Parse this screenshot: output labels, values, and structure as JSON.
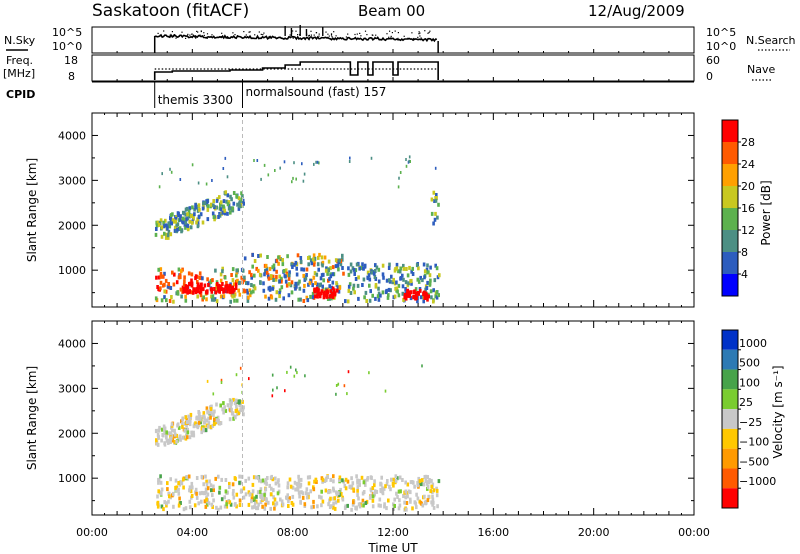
{
  "header": {
    "site": "Saskatoon (fitACF)",
    "beam": "Beam 00",
    "date": "12/Aug/2009"
  },
  "ticks_hours": [
    0,
    4,
    8,
    12,
    16,
    20,
    24
  ],
  "tick_labels": [
    "00:00",
    "04:00",
    "08:00",
    "12:00",
    "16:00",
    "20:00",
    "00:00"
  ],
  "xlabel": "Time UT",
  "noise_panel": {
    "left_label": "N.Sky",
    "right_label": "N.Search",
    "left_ticks": [
      "10^5",
      "10^0"
    ],
    "right_ticks": [
      "10^5",
      "10^0"
    ]
  },
  "freq_panel": {
    "left_label_1": "Freq.",
    "left_label_2": "[MHz]",
    "right_label": "Nave",
    "left_ticks": [
      "18",
      "8"
    ],
    "right_ticks": [
      "60",
      "0"
    ]
  },
  "cpid": {
    "label": "CPID",
    "segments": [
      {
        "start_h": 2.5,
        "name": "themis 3300"
      },
      {
        "start_h": 6.0,
        "name": "normalsound (fast) 157"
      }
    ]
  },
  "range_panel": {
    "ylabel": "Slant Range [km]",
    "yticks": [
      1000,
      2000,
      3000,
      4000
    ],
    "ylim": [
      180,
      4500
    ]
  },
  "power_colorbar": {
    "label": "Power [dB]",
    "ticks": [
      "4",
      "8",
      "12",
      "16",
      "20",
      "24",
      "28"
    ],
    "colors": [
      "#0000ff",
      "#2d5dbe",
      "#4c8f84",
      "#5cb14e",
      "#c8c820",
      "#ffa000",
      "#ff5a00",
      "#ff0000"
    ]
  },
  "velocity_colorbar": {
    "label": "Velocity [m s⁻¹]",
    "ticks": [
      "1000",
      "500",
      "100",
      "25",
      "−25",
      "−100",
      "−500",
      "−1000"
    ],
    "colors": [
      "#0032c8",
      "#2d7ab4",
      "#47a34a",
      "#7acc30",
      "#c8c8c8",
      "#ffc800",
      "#ff9a00",
      "#ff5a00",
      "#ff0000"
    ]
  },
  "chart_data": {
    "type": "heatmap",
    "title": "Saskatoon (fitACF) Beam 00 12/Aug/2009",
    "xlabel": "Time UT",
    "ylabel": "Slant Range [km]",
    "xlim_hours": [
      0,
      24
    ],
    "ylim_km": [
      180,
      4500
    ],
    "power_scatter_regions": [
      {
        "t0": 2.5,
        "t1": 6.0,
        "r0": 250,
        "r1": 1000,
        "level": "high (20-30 dB)"
      },
      {
        "t0": 2.5,
        "t1": 6.0,
        "r0": 1650,
        "r1": 2700,
        "level": "moderate (8-20 dB)"
      },
      {
        "t0": 6.0,
        "t1": 10.0,
        "r0": 250,
        "r1": 1300,
        "level": "moderate-high"
      },
      {
        "t0": 10.0,
        "t1": 13.8,
        "r0": 250,
        "r1": 1100,
        "level": "moderate"
      },
      {
        "t0": 13.5,
        "t1": 13.8,
        "r0": 1900,
        "r1": 2700,
        "level": "moderate"
      }
    ],
    "velocity_scatter_regions": [
      {
        "t0": 2.5,
        "t1": 13.8,
        "r0": 250,
        "r1": 1000,
        "dominant": "-25 to 25 m/s (grey) with -100 m/s"
      },
      {
        "t0": 2.5,
        "t1": 6.0,
        "r0": 1650,
        "r1": 2700,
        "dominant": "-25 to 25 m/s (grey)"
      }
    ]
  }
}
